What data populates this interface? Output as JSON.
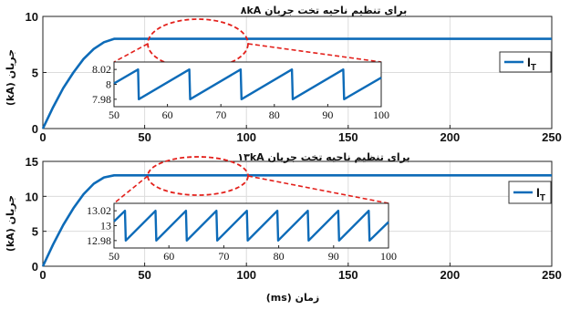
{
  "xlabel": "زمان (ms)",
  "chart_data": [
    {
      "type": "line",
      "title": "برای تنظیم ناحیه تخت جریان  ۸kA",
      "ylabel": "جریان (kA)",
      "xlim": [
        0,
        250
      ],
      "ylim": [
        0,
        10
      ],
      "xticks": [
        "0",
        "50",
        "100",
        "150",
        "200",
        "250"
      ],
      "yticks": [
        "0",
        "5",
        "10"
      ],
      "legend": {
        "label": "I",
        "subscript": "T",
        "placement": "top-right"
      },
      "series": [
        {
          "x": [
            0,
            5,
            10,
            15,
            20,
            25,
            30,
            35,
            40,
            250
          ],
          "values": [
            0,
            1.9,
            3.6,
            5.0,
            6.2,
            7.1,
            7.7,
            8.0,
            8.0,
            8.0
          ]
        }
      ],
      "inset": {
        "xlim": [
          50,
          100
        ],
        "ylim": [
          7.97,
          8.03
        ],
        "xticks": [
          "50",
          "60",
          "70",
          "80",
          "90",
          "100"
        ],
        "yticks": [
          "8.02",
          "8",
          "7.98"
        ],
        "period": 9.6,
        "phase": 4.5,
        "wave_min": 7.98,
        "wave_max": 8.02,
        "zoom_xlim": [
          50,
          100
        ],
        "zoom_y": 8.0
      }
    },
    {
      "type": "line",
      "title": "برای تنظیم ناحیه تخت جریان  ۱۳kA",
      "ylabel": "جریان (kA)",
      "xlim": [
        0,
        250
      ],
      "ylim": [
        0,
        15
      ],
      "xticks": [
        "0",
        "50",
        "100",
        "150",
        "200",
        "250"
      ],
      "yticks": [
        "0",
        "5",
        "10",
        "15"
      ],
      "legend": {
        "label": "I",
        "subscript": "T",
        "placement": "top-right"
      },
      "series": [
        {
          "x": [
            0,
            5,
            10,
            15,
            20,
            25,
            30,
            35,
            40,
            250
          ],
          "values": [
            0,
            3.1,
            5.9,
            8.3,
            10.3,
            11.8,
            12.7,
            13.0,
            13.0,
            13.0
          ]
        }
      ],
      "inset": {
        "xlim": [
          50,
          100
        ],
        "ylim": [
          12.97,
          13.03
        ],
        "xticks": [
          "50",
          "60",
          "70",
          "80",
          "90",
          "100"
        ],
        "yticks": [
          "13.02",
          "13",
          "12.98"
        ],
        "period": 5.55,
        "phase": 2.0,
        "wave_min": 12.98,
        "wave_max": 13.02,
        "zoom_xlim": [
          50,
          100
        ],
        "zoom_y": 13.0
      }
    }
  ]
}
